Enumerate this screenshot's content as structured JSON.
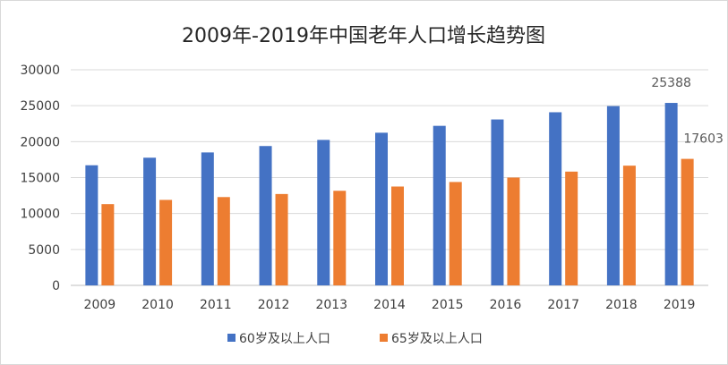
{
  "chart_data": {
    "type": "bar",
    "title": "2009年-2019年中国老年人口增长趋势图",
    "categories": [
      "2009",
      "2010",
      "2011",
      "2012",
      "2013",
      "2014",
      "2015",
      "2016",
      "2017",
      "2018",
      "2019"
    ],
    "series": [
      {
        "name": "60岁及以上人口",
        "color": "#4472C4",
        "values": [
          16714,
          17765,
          18499,
          19390,
          20243,
          21242,
          22200,
          23086,
          24090,
          24949,
          25388
        ]
      },
      {
        "name": "65岁及以上人口",
        "color": "#ED7D31",
        "values": [
          11307,
          11894,
          12288,
          12714,
          13161,
          13755,
          14386,
          15003,
          15831,
          16658,
          17603
        ]
      }
    ],
    "data_labels": [
      {
        "series": 0,
        "category": "2019",
        "text": "25388"
      },
      {
        "series": 1,
        "category": "2019",
        "text": "17603"
      }
    ],
    "ylim": [
      0,
      30000
    ],
    "yticks": [
      "0",
      "5000",
      "10000",
      "15000",
      "20000",
      "25000",
      "30000"
    ],
    "grid": true,
    "legend": "bottom"
  }
}
